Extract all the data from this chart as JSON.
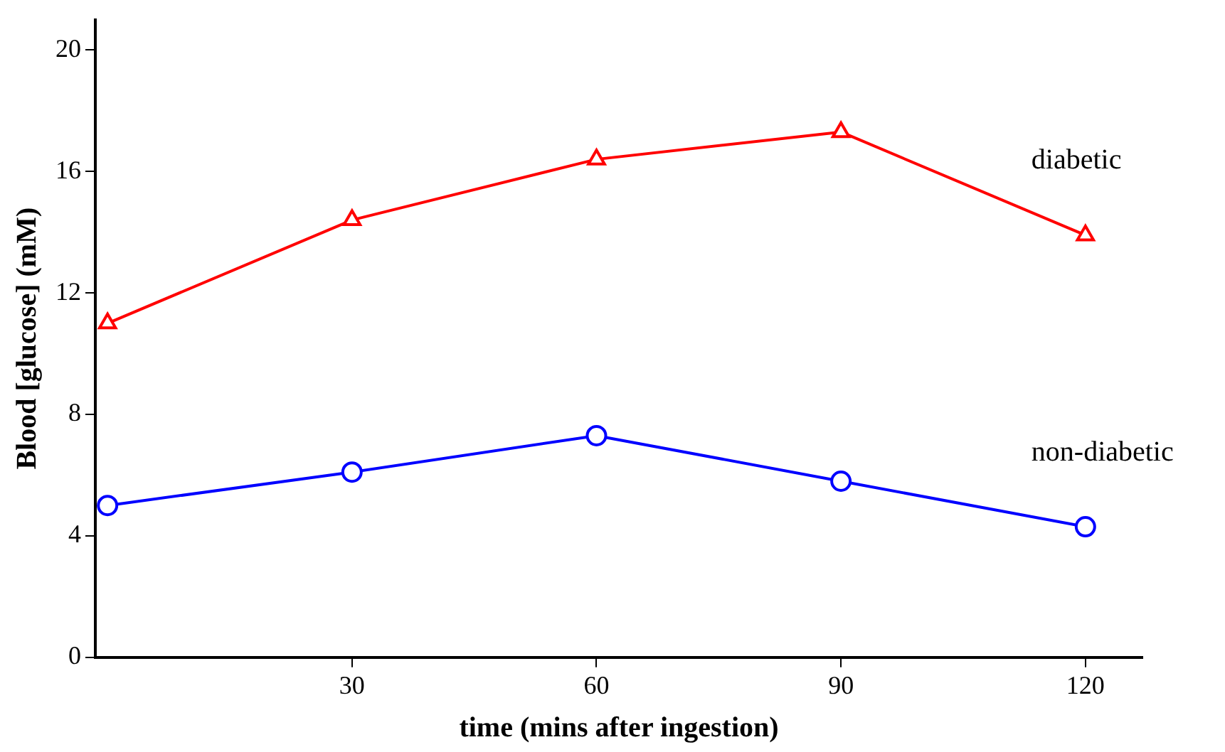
{
  "chart_data": {
    "type": "line",
    "xlabel": "time (mins after ingestion)",
    "ylabel": "Blood [glucose] (mM)",
    "x": [
      0,
      30,
      60,
      90,
      120
    ],
    "series": [
      {
        "name": "diabetic",
        "color": "#ff0000",
        "marker": "triangle",
        "values": [
          11.0,
          14.4,
          16.4,
          17.3,
          13.9
        ]
      },
      {
        "name": "non-diabetic",
        "color": "#0000ff",
        "marker": "circle",
        "values": [
          5.0,
          6.1,
          7.3,
          5.8,
          4.3
        ]
      }
    ],
    "xlim": [
      -1.5,
      127
    ],
    "xticks": [
      30,
      60,
      90,
      120
    ],
    "ylim": [
      0,
      21
    ],
    "yticks": [
      0,
      4,
      8,
      12,
      16,
      20
    ],
    "grid": false,
    "legend": false,
    "line_style": "solid"
  }
}
